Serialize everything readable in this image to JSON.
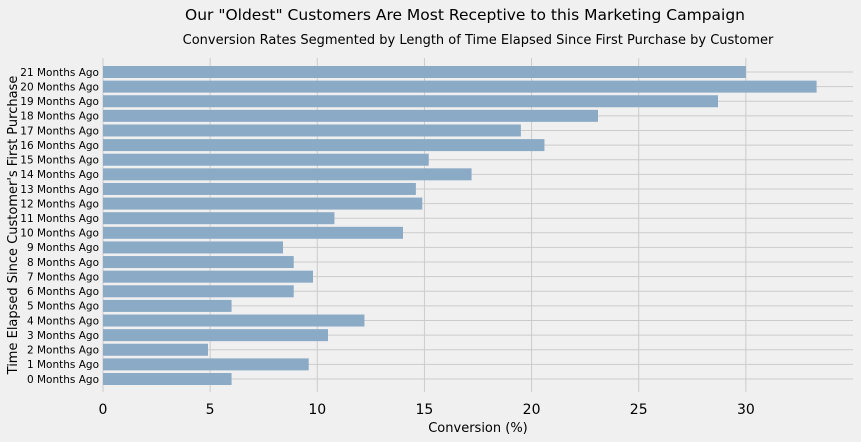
{
  "chart_data": {
    "type": "bar",
    "orientation": "horizontal",
    "title": "Our \"Oldest\" Customers Are Most Receptive to this Marketing Campaign",
    "subtitle": "Conversion Rates Segmented by Length of Time Elapsed Since First Purchase by Customer",
    "xlabel": "Conversion (%)",
    "ylabel": "Time Elapsed Since Customer's First Purchase",
    "xlim": [
      0,
      35
    ],
    "xticks": [
      0,
      5,
      10,
      15,
      20,
      25,
      30
    ],
    "grid": true,
    "bar_color": "#8aaac6",
    "background": "#f0f0f0",
    "categories": [
      "0 Months Ago",
      "1 Months Ago",
      "2 Months Ago",
      "3 Months Ago",
      "4 Months Ago",
      "5 Months Ago",
      "6 Months Ago",
      "7 Months Ago",
      "8 Months Ago",
      "9 Months Ago",
      "10 Months Ago",
      "11 Months Ago",
      "12 Months Ago",
      "13 Months Ago",
      "14 Months Ago",
      "15 Months Ago",
      "16 Months Ago",
      "17 Months Ago",
      "18 Months Ago",
      "19 Months Ago",
      "20 Months Ago",
      "21 Months Ago"
    ],
    "values": [
      6.0,
      9.6,
      4.9,
      10.5,
      12.2,
      6.0,
      8.9,
      9.8,
      8.9,
      8.4,
      14.0,
      10.8,
      14.9,
      14.6,
      17.2,
      15.2,
      20.6,
      19.5,
      23.1,
      28.7,
      33.3,
      30.0
    ]
  }
}
